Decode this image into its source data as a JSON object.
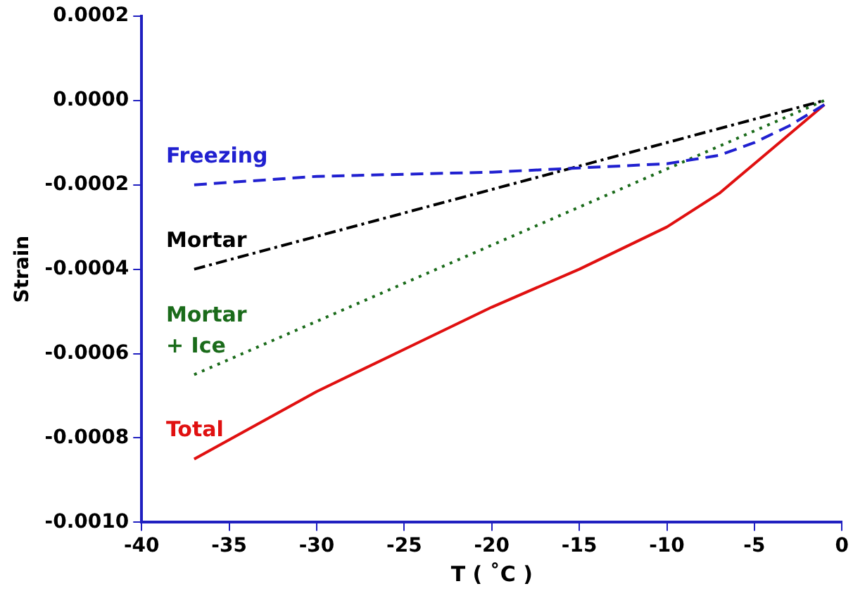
{
  "chart_data": {
    "type": "line",
    "xlabel": "T ( ˚C )",
    "ylabel": "Strain",
    "xlim": [
      -40,
      0
    ],
    "xticks": [
      -40,
      -35,
      -30,
      -25,
      -20,
      -15,
      -10,
      -5,
      0
    ],
    "ylim": [
      -0.001,
      0.0002
    ],
    "yticks": [
      {
        "value": 0.0002,
        "label": "0.0002"
      },
      {
        "value": 0,
        "label": "0.0000"
      },
      {
        "value": -0.0002,
        "label": "-0.0002"
      },
      {
        "value": -0.0004,
        "label": "-0.0004"
      },
      {
        "value": -0.0006,
        "label": "-0.0006"
      },
      {
        "value": -0.0008,
        "label": "-0.0008"
      },
      {
        "value": -0.001,
        "label": "-0.0010"
      }
    ],
    "grid": false,
    "legend": false,
    "marker": "none",
    "series": [
      {
        "name": "Freezing",
        "color": "#2020d0",
        "line_style": "dashed",
        "x": [
          -37,
          -30,
          -20,
          -15,
          -10,
          -7,
          -5,
          -3,
          -1
        ],
        "values": [
          -0.0002,
          -0.00018,
          -0.00017,
          -0.00016,
          -0.00015,
          -0.00013,
          -0.0001,
          -6e-05,
          -1e-05
        ]
      },
      {
        "name": "Mortar",
        "color": "#000000",
        "line_style": "dashdot",
        "x": [
          -37,
          -1
        ],
        "values": [
          -0.0004,
          0
        ]
      },
      {
        "name": "Mortar\n+ Ice",
        "color": "#1a6b1a",
        "line_style": "dotted",
        "x": [
          -37,
          -1
        ],
        "values": [
          -0.00065,
          0
        ]
      },
      {
        "name": "Total",
        "color": "#e01010",
        "line_style": "solid",
        "x": [
          -37,
          -30,
          -25,
          -20,
          -15,
          -10,
          -7,
          -5,
          -3,
          -1
        ],
        "values": [
          -0.00085,
          -0.00069,
          -0.00059,
          -0.00049,
          -0.0004,
          -0.0003,
          -0.00022,
          -0.00015,
          -8e-05,
          -1e-05
        ]
      }
    ]
  }
}
